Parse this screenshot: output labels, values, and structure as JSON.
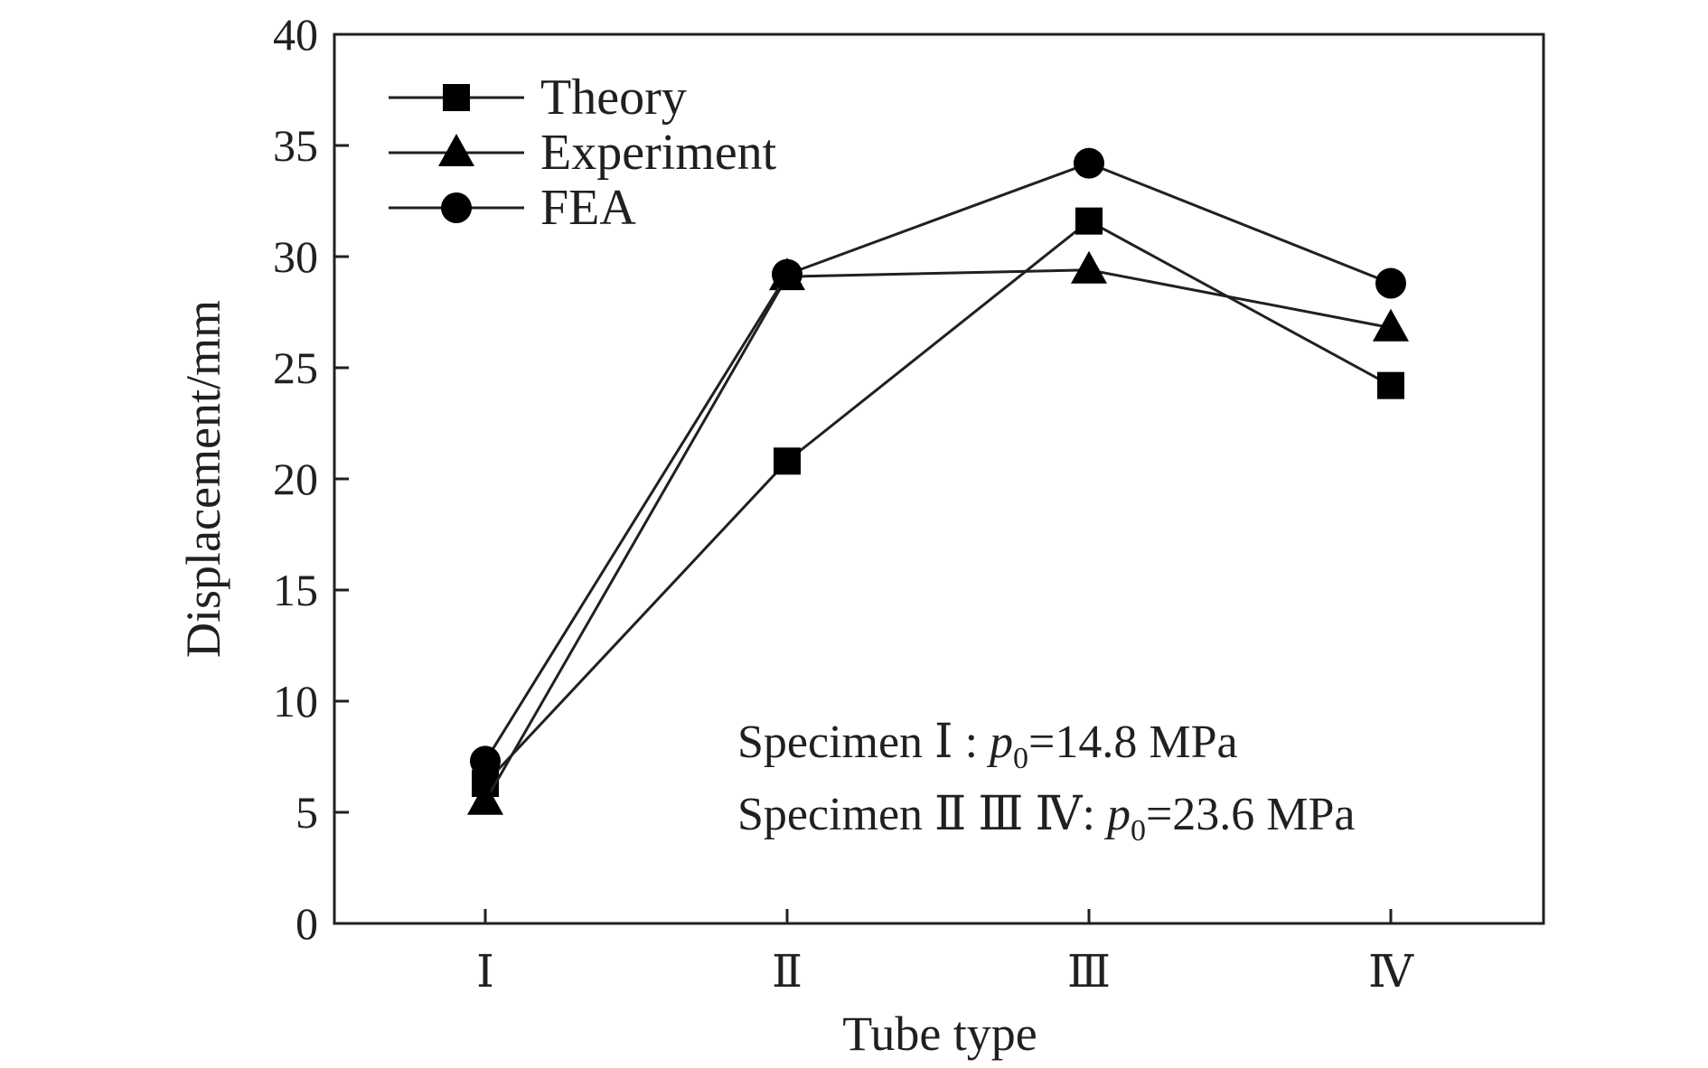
{
  "chart_data": {
    "type": "line",
    "xlabel": "Tube type",
    "ylabel": "Displacement/mm",
    "categories": [
      "Ⅰ",
      "Ⅱ",
      "Ⅲ",
      "Ⅳ"
    ],
    "ylim": [
      0,
      40
    ],
    "yticks": [
      0,
      5,
      10,
      15,
      20,
      25,
      30,
      35,
      40
    ],
    "grid": false,
    "legend_position": "top-left",
    "series": [
      {
        "name": "Theory",
        "marker": "square",
        "values": [
          6.3,
          20.8,
          31.6,
          24.2
        ]
      },
      {
        "name": "Experiment",
        "marker": "triangle",
        "values": [
          5.5,
          29.1,
          29.4,
          26.8
        ]
      },
      {
        "name": "FEA",
        "marker": "circle",
        "values": [
          7.3,
          29.2,
          34.2,
          28.8
        ]
      }
    ],
    "annotations": [
      {
        "prefix": "Specimen Ⅰ : ",
        "var": "p",
        "sub": "0",
        "suffix": "=14.8 MPa"
      },
      {
        "prefix": "Specimen Ⅱ Ⅲ Ⅳ: ",
        "var": "p",
        "sub": "0",
        "suffix": "=23.6 MPa"
      }
    ],
    "colors": {
      "line": "#231f20",
      "marker": "#000000"
    }
  }
}
